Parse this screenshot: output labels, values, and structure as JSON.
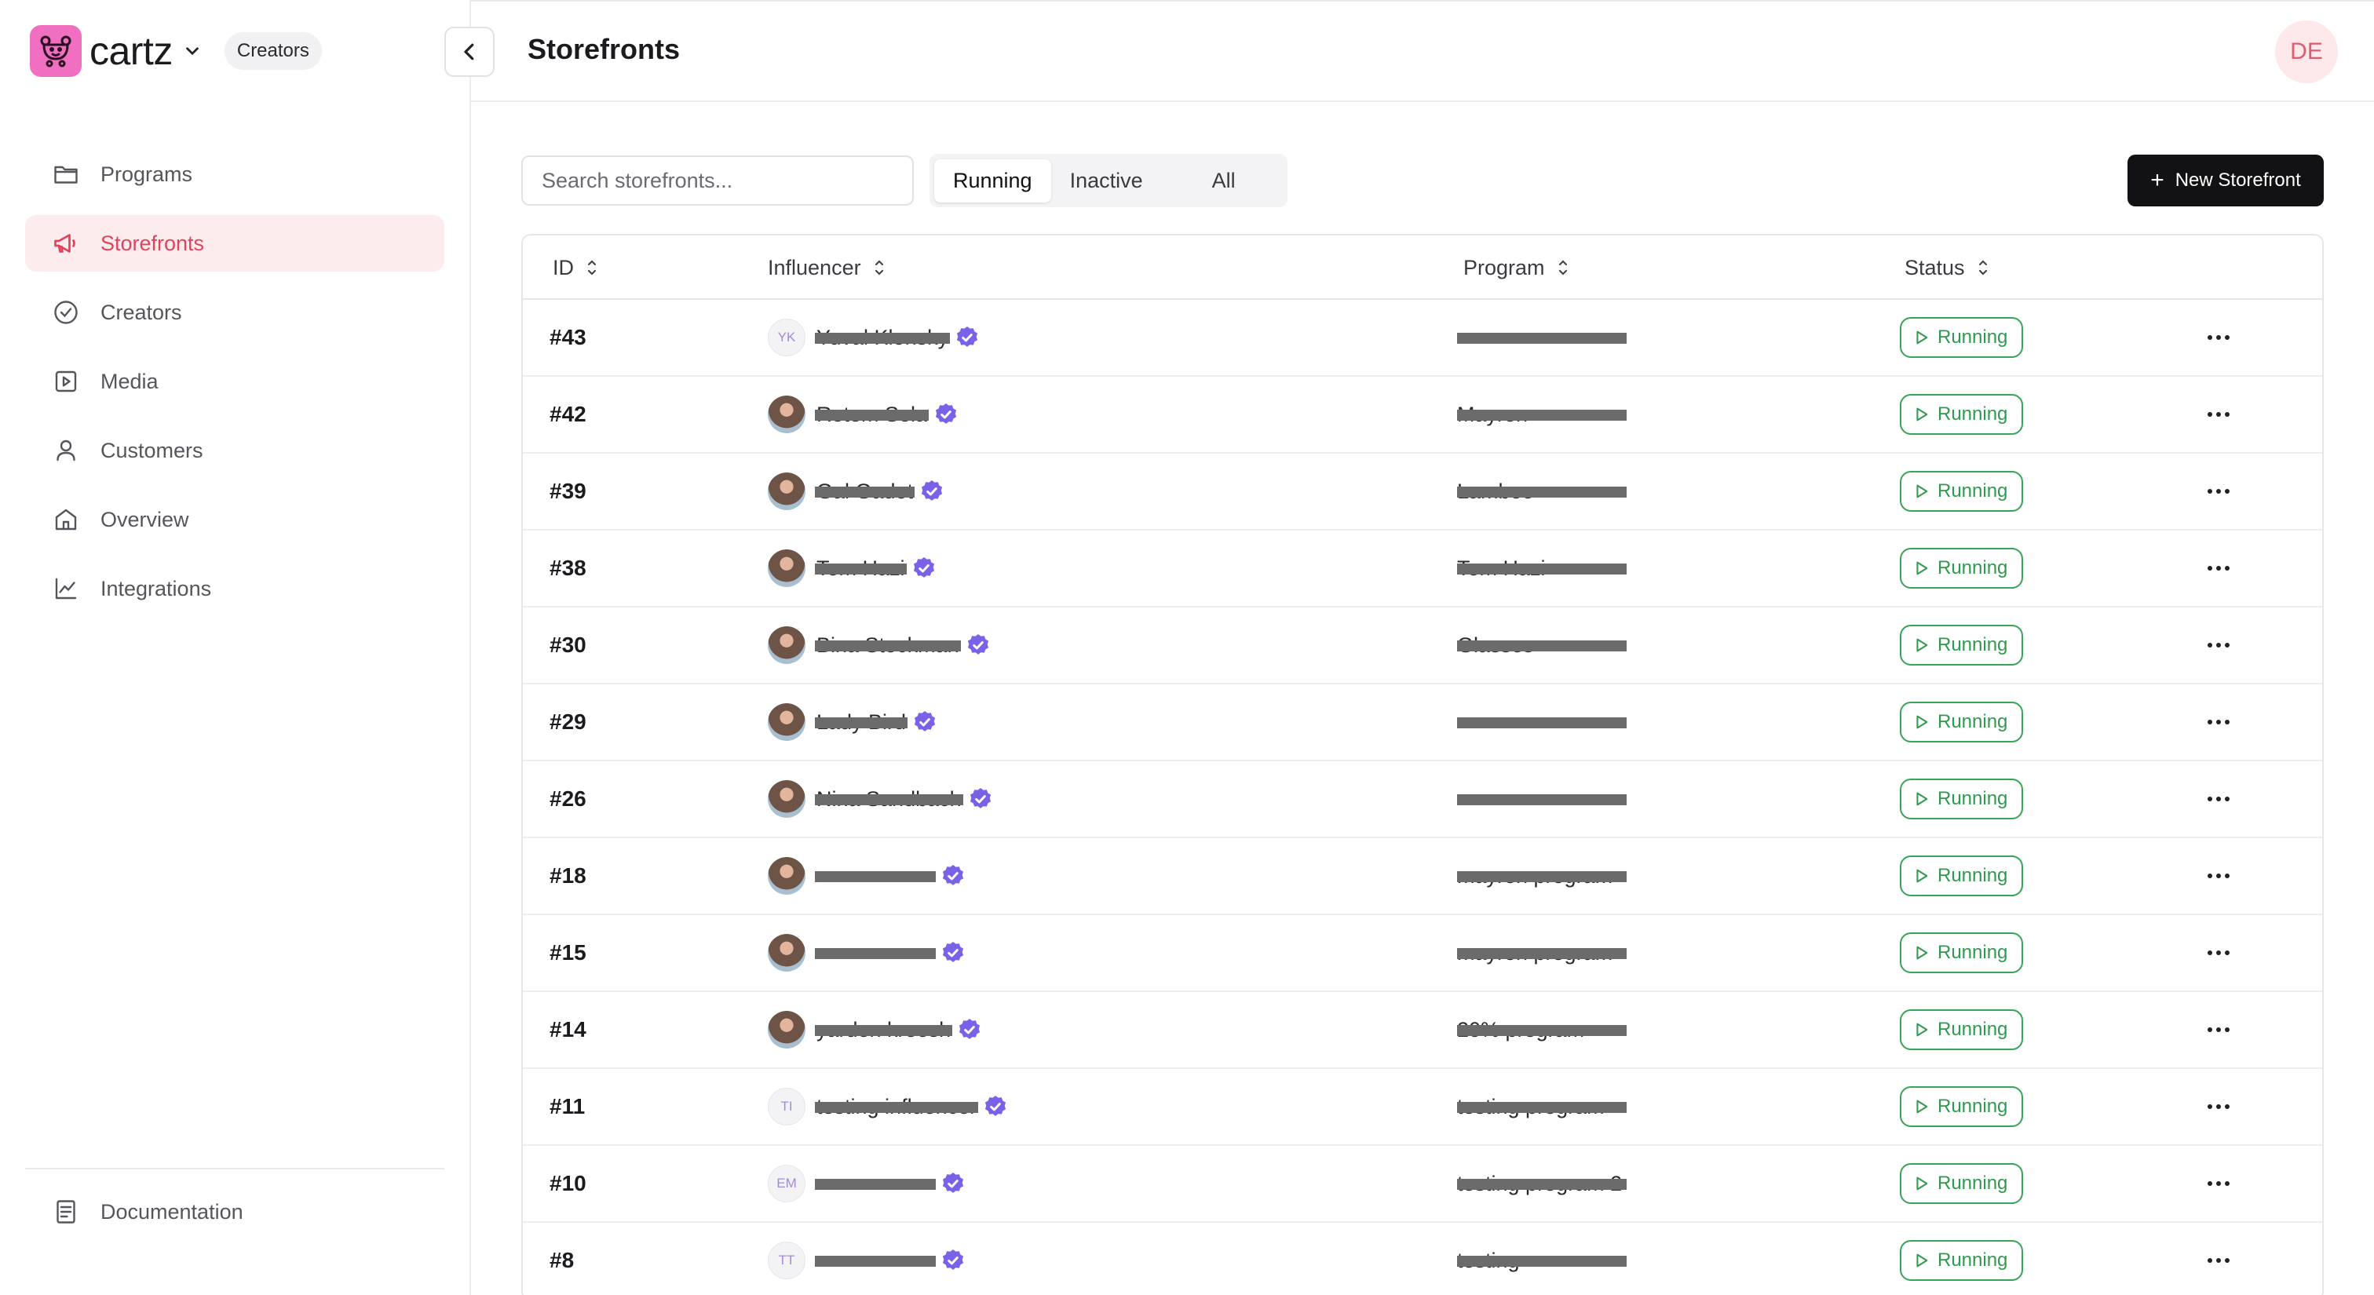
{
  "app": {
    "brand": "cartz",
    "workspace": "Creators",
    "avatar_initials": "DE",
    "accent": "#e0435b",
    "logo_color": "#f06fc0"
  },
  "sidebar": {
    "items": [
      {
        "label": "Programs",
        "icon": "folder-icon",
        "active": false
      },
      {
        "label": "Storefronts",
        "icon": "megaphone-icon",
        "active": true
      },
      {
        "label": "Creators",
        "icon": "check-circle-icon",
        "active": false
      },
      {
        "label": "Media",
        "icon": "play-square-icon",
        "active": false
      },
      {
        "label": "Customers",
        "icon": "user-icon",
        "active": false
      },
      {
        "label": "Overview",
        "icon": "home-icon",
        "active": false
      },
      {
        "label": "Integrations",
        "icon": "chart-line-icon",
        "active": false
      }
    ],
    "footer_item": {
      "label": "Documentation",
      "icon": "document-icon"
    }
  },
  "header": {
    "title": "Storefronts"
  },
  "toolbar": {
    "search_placeholder": "Search storefronts...",
    "tabs": [
      "Running",
      "Inactive",
      "All"
    ],
    "active_tab": "Running",
    "new_button": "New Storefront"
  },
  "table": {
    "columns": [
      "ID",
      "Influencer",
      "Program",
      "Status"
    ],
    "rows": [
      {
        "id": "#43",
        "avatar": "YK",
        "influencer": "Yuval Klonsky",
        "program": "",
        "status": "Running"
      },
      {
        "id": "#42",
        "avatar": "photo",
        "influencer": "Rotem Sela",
        "program": "Mayron",
        "status": "Running"
      },
      {
        "id": "#39",
        "avatar": "photo",
        "influencer": "Gal Gadot",
        "program": "Lambee",
        "status": "Running"
      },
      {
        "id": "#38",
        "avatar": "photo",
        "influencer": "Tom Hazi",
        "program": "Tom Hazi",
        "status": "Running"
      },
      {
        "id": "#30",
        "avatar": "photo",
        "influencer": "Bina Stockman",
        "program": "Glasses",
        "status": "Running"
      },
      {
        "id": "#29",
        "avatar": "photo",
        "influencer": "Lady Bird",
        "program": "",
        "status": "Running"
      },
      {
        "id": "#26",
        "avatar": "photo",
        "influencer": "Nina Sandbach",
        "program": "",
        "status": "Running"
      },
      {
        "id": "#18",
        "avatar": "photo",
        "influencer": "",
        "program": "mayron program",
        "status": "Running"
      },
      {
        "id": "#15",
        "avatar": "photo",
        "influencer": "",
        "program": "mayron program",
        "status": "Running"
      },
      {
        "id": "#14",
        "avatar": "photo",
        "influencer": "yarden kreesh",
        "program": "20% program",
        "status": "Running"
      },
      {
        "id": "#11",
        "avatar": "TI",
        "influencer": "testing influencer",
        "program": "testing program",
        "status": "Running"
      },
      {
        "id": "#10",
        "avatar": "EM",
        "influencer": "",
        "program": "testing program 2",
        "status": "Running"
      },
      {
        "id": "#8",
        "avatar": "TT",
        "influencer": "",
        "program": "testing",
        "status": "Running"
      }
    ]
  }
}
